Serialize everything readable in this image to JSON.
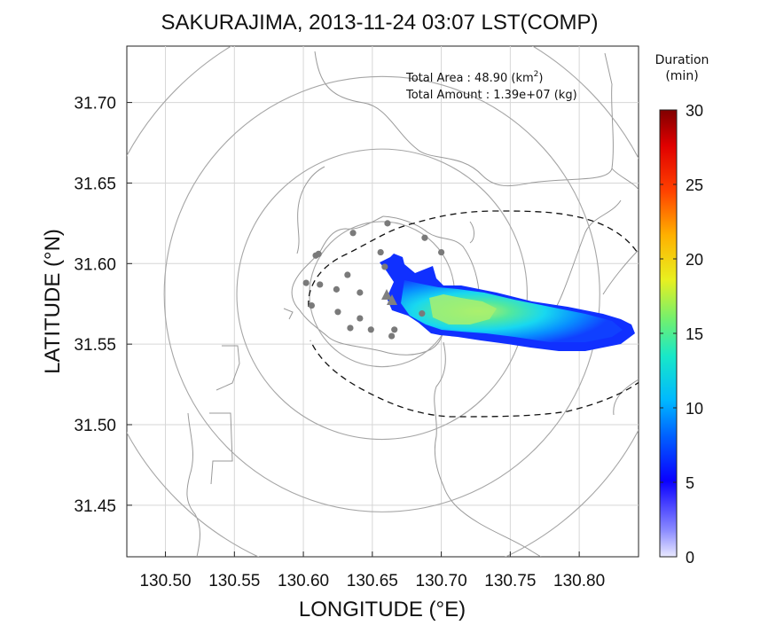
{
  "chart_data": {
    "type": "heatmap",
    "title": "SAKURAJIMA, 2013-11-24 03:07 LST(COMP)",
    "xlabel": "LONGITUDE (°E)",
    "ylabel": "LATITUDE (°N)",
    "xlim": [
      130.472,
      130.843
    ],
    "ylim": [
      31.418,
      31.735
    ],
    "x_ticks": [
      "130.50",
      "130.55",
      "130.60",
      "130.65",
      "130.70",
      "130.75",
      "130.80"
    ],
    "x_tick_values": [
      130.5,
      130.55,
      130.6,
      130.65,
      130.7,
      130.75,
      130.8
    ],
    "y_ticks": [
      "31.45",
      "31.50",
      "31.55",
      "31.60",
      "31.65",
      "31.70"
    ],
    "y_tick_values": [
      31.45,
      31.5,
      31.55,
      31.6,
      31.65,
      31.7
    ],
    "grid": true,
    "annotations": {
      "area_label": "Total Area   : 48.90 (km",
      "area_sup": "2",
      "area_close": ")",
      "amount_label": "Total Amount : 1.39e+07 (kg)"
    },
    "colorbar": {
      "title_line1": "Duration",
      "title_line2": "(min)",
      "min": 0,
      "max": 30,
      "tick_labels": [
        "0",
        "5",
        "10",
        "15",
        "20",
        "25",
        "30"
      ],
      "tick_values": [
        0,
        5,
        10,
        15,
        20,
        25,
        30
      ]
    },
    "vent": {
      "lon": 130.657,
      "lat": 31.581
    },
    "range_rings_km": [
      5,
      10,
      15,
      20
    ],
    "stations": [
      {
        "lon": 130.661,
        "lat": 31.625
      },
      {
        "lon": 130.636,
        "lat": 31.619
      },
      {
        "lon": 130.688,
        "lat": 31.616
      },
      {
        "lon": 130.611,
        "lat": 31.606
      },
      {
        "lon": 130.656,
        "lat": 31.607
      },
      {
        "lon": 130.7,
        "lat": 31.607
      },
      {
        "lon": 130.609,
        "lat": 31.605
      },
      {
        "lon": 130.659,
        "lat": 31.598
      },
      {
        "lon": 130.632,
        "lat": 31.593
      },
      {
        "lon": 130.602,
        "lat": 31.588
      },
      {
        "lon": 130.612,
        "lat": 31.587
      },
      {
        "lon": 130.624,
        "lat": 31.584
      },
      {
        "lon": 130.641,
        "lat": 31.582
      },
      {
        "lon": 130.606,
        "lat": 31.574
      },
      {
        "lon": 130.641,
        "lat": 31.566
      },
      {
        "lon": 130.625,
        "lat": 31.57
      },
      {
        "lon": 130.686,
        "lat": 31.569
      },
      {
        "lon": 130.634,
        "lat": 31.56
      },
      {
        "lon": 130.649,
        "lat": 31.559
      },
      {
        "lon": 130.666,
        "lat": 31.559
      },
      {
        "lon": 130.664,
        "lat": 31.555
      }
    ],
    "plume_duration_min": [
      {
        "lon": 130.662,
        "lat": 31.603,
        "value": 3
      },
      {
        "lon": 130.67,
        "lat": 31.6,
        "value": 4
      },
      {
        "lon": 130.668,
        "lat": 31.585,
        "value": 6
      },
      {
        "lon": 130.68,
        "lat": 31.578,
        "value": 9
      },
      {
        "lon": 130.695,
        "lat": 31.574,
        "value": 13
      },
      {
        "lon": 130.705,
        "lat": 31.572,
        "value": 16
      },
      {
        "lon": 130.715,
        "lat": 31.57,
        "value": 15
      },
      {
        "lon": 130.73,
        "lat": 31.568,
        "value": 12
      },
      {
        "lon": 130.75,
        "lat": 31.565,
        "value": 10
      },
      {
        "lon": 130.77,
        "lat": 31.562,
        "value": 9
      },
      {
        "lon": 130.79,
        "lat": 31.56,
        "value": 8
      },
      {
        "lon": 130.81,
        "lat": 31.557,
        "value": 6
      },
      {
        "lon": 130.83,
        "lat": 31.555,
        "value": 4
      }
    ]
  }
}
